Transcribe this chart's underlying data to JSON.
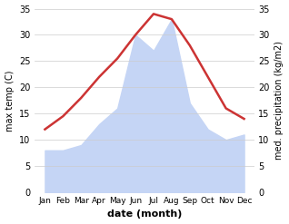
{
  "months": [
    "Jan",
    "Feb",
    "Mar",
    "Apr",
    "May",
    "Jun",
    "Jul",
    "Aug",
    "Sep",
    "Oct",
    "Nov",
    "Dec"
  ],
  "temp_max": [
    12,
    14.5,
    18,
    22,
    25.5,
    30,
    34,
    33,
    28,
    22,
    16,
    14
  ],
  "precipitation": [
    8,
    8,
    9,
    13,
    16,
    30,
    27,
    33,
    17,
    12,
    10,
    11
  ],
  "temp_color": "#cc3333",
  "precip_fill_color": "#c5d5f5",
  "temp_ylim": [
    0,
    35
  ],
  "precip_ylim": [
    0,
    35
  ],
  "yticks": [
    0,
    5,
    10,
    15,
    20,
    25,
    30,
    35
  ],
  "xlabel": "date (month)",
  "ylabel_left": "max temp (C)",
  "ylabel_right": "med. precipitation (kg/m2)",
  "background_color": "#ffffff",
  "grid_color": "#cccccc"
}
